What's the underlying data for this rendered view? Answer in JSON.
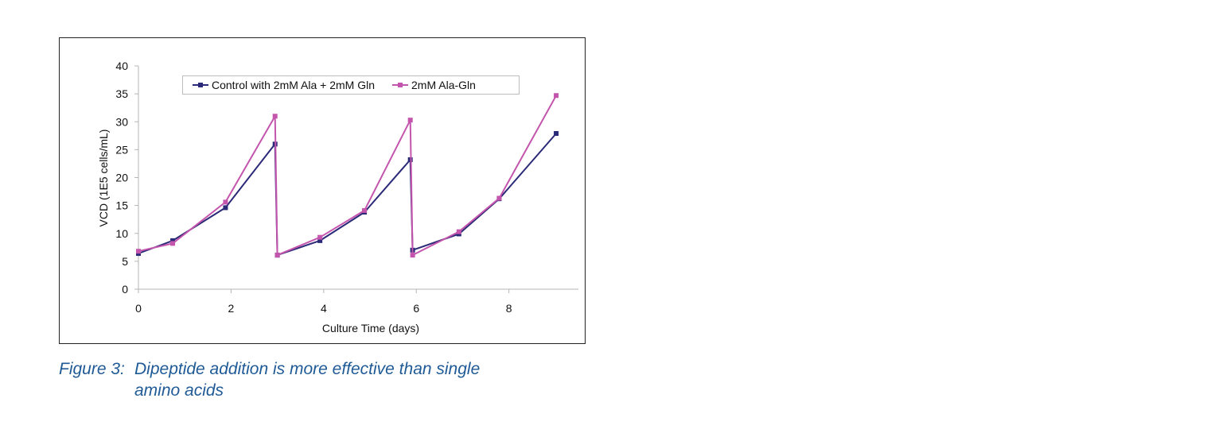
{
  "chart_data": {
    "type": "line",
    "title": "",
    "xlabel": "Culture Time (days)",
    "ylabel": "VCD (1E5 cells/mL)",
    "xlim": [
      0,
      9.5
    ],
    "ylim": [
      0,
      40
    ],
    "x_ticks": [
      0,
      2,
      4,
      6,
      8
    ],
    "y_ticks": [
      0,
      5,
      10,
      15,
      20,
      25,
      30,
      35,
      40
    ],
    "grid": false,
    "legend_position": "top-inside",
    "series": [
      {
        "name": "Control with 2mM Ala + 2mM Gln",
        "color": "#2b2a78",
        "marker": "square",
        "x": [
          0,
          0.74,
          1.88,
          2.95,
          3.0,
          3.92,
          4.88,
          5.87,
          5.92,
          6.92,
          7.79,
          9.02
        ],
        "values": [
          6.4,
          8.7,
          14.6,
          26.0,
          6.1,
          8.7,
          13.8,
          23.2,
          7.0,
          9.9,
          16.2,
          27.9
        ]
      },
      {
        "name": "2mM Ala-Gln",
        "color": "#c455ad",
        "marker": "square",
        "x": [
          0,
          0.74,
          1.88,
          2.95,
          3.0,
          3.92,
          4.88,
          5.87,
          5.92,
          6.92,
          7.79,
          9.02
        ],
        "values": [
          6.8,
          8.2,
          15.6,
          31.0,
          6.1,
          9.3,
          14.1,
          30.3,
          6.1,
          10.3,
          16.3,
          34.7
        ]
      }
    ]
  },
  "caption": {
    "label": "Figure 3:",
    "line1": "Dipeptide addition is more effective than single",
    "line2": "amino acids"
  }
}
